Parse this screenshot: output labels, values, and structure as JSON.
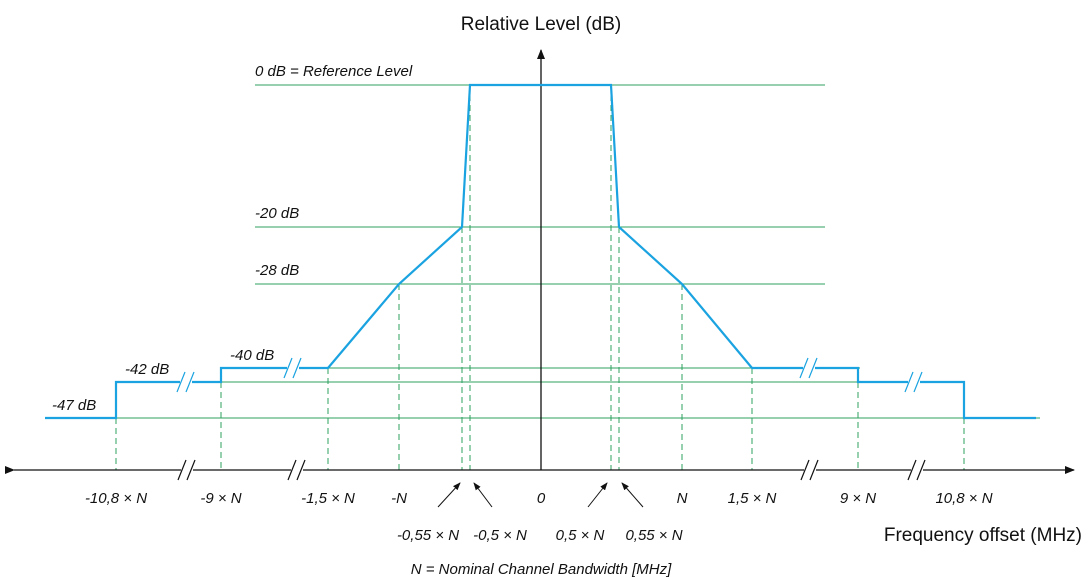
{
  "diagram": {
    "y_axis_title": "Relative Level (dB)",
    "x_axis_title": "Frequency offset (MHz)",
    "footnote": "N = Nominal Channel Bandwidth [MHz]",
    "colors": {
      "mask_line": "#1aa3e0",
      "reference_lines": "#2ca25f",
      "axes": "#111111"
    },
    "levels": {
      "l0": "0 dB = Reference Level",
      "l20": "-20 dB",
      "l28": "-28 dB",
      "l40": "-40 dB",
      "l42": "-42 dB",
      "l47": "-47 dB"
    },
    "ticks": {
      "t108n": "-10,8 × N",
      "t9n": "-9 × N",
      "t15n": "-1,5 × N",
      "tn": "-N",
      "t0": "0",
      "pn": "N",
      "p15n": "1,5 × N",
      "p9n": "9 × N",
      "p108n": "10,8 × N",
      "t055n": "-0,55 × N",
      "t05n": "-0,5 × N",
      "p05n": "0,5 × N",
      "p055n": "0,55 × N"
    },
    "mask_points": [
      {
        "offset": "< -10,8 × N",
        "level_db": -47
      },
      {
        "offset": "-10,8 × N",
        "level_db": -42
      },
      {
        "offset": "-9 × N",
        "level_db": -40
      },
      {
        "offset": "-1,5 × N",
        "level_db": -40
      },
      {
        "offset": "-N",
        "level_db": -28
      },
      {
        "offset": "-0,55 × N",
        "level_db": -20
      },
      {
        "offset": "-0,5 × N",
        "level_db": 0
      },
      {
        "offset": "0,5 × N",
        "level_db": 0
      },
      {
        "offset": "0,55 × N",
        "level_db": -20
      },
      {
        "offset": "N",
        "level_db": -28
      },
      {
        "offset": "1,5 × N",
        "level_db": -40
      },
      {
        "offset": "9 × N",
        "level_db": -40
      },
      {
        "offset": "10,8 × N",
        "level_db": -42
      },
      {
        "offset": "> 10,8 × N",
        "level_db": -47
      }
    ]
  }
}
